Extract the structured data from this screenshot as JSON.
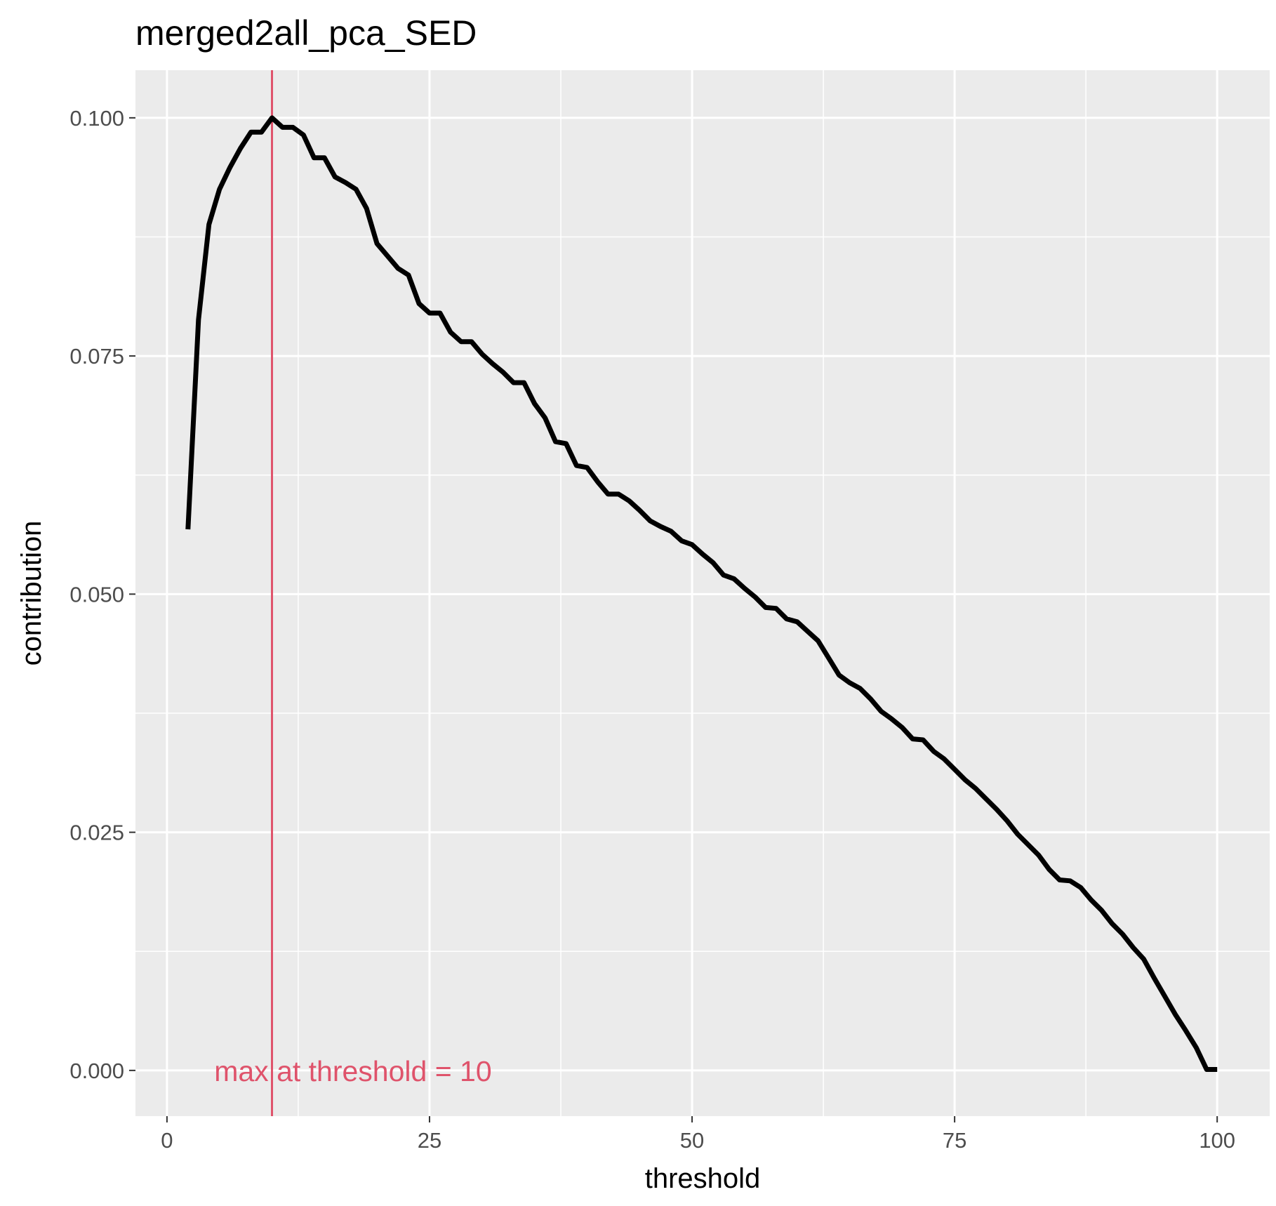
{
  "chart_data": {
    "type": "line",
    "title": "merged2all_pca_SED",
    "xlabel": "threshold",
    "ylabel": "contribution",
    "xlim": [
      -3,
      105
    ],
    "ylim": [
      -0.0048,
      0.105
    ],
    "x_ticks": [
      0,
      25,
      50,
      75,
      100
    ],
    "x_tick_labels": [
      "0",
      "25",
      "50",
      "75",
      "100"
    ],
    "y_ticks": [
      0,
      0.025,
      0.05,
      0.075,
      0.1
    ],
    "y_tick_labels": [
      "0.000",
      "0.025",
      "0.050",
      "0.075",
      "0.100"
    ],
    "grid": true,
    "legend": "none",
    "series": [
      {
        "color": "#000000",
        "x": [
          2,
          3,
          4,
          5,
          6,
          7,
          8,
          9,
          10,
          11,
          12,
          13,
          14,
          15,
          16,
          17,
          18,
          19,
          20,
          21,
          22,
          23,
          24,
          25,
          26,
          27,
          28,
          29,
          30,
          31,
          32,
          33,
          34,
          35,
          36,
          37,
          38,
          39,
          40,
          41,
          42,
          43,
          44,
          45,
          46,
          47,
          48,
          49,
          50,
          51,
          52,
          53,
          54,
          55,
          56,
          57,
          58,
          59,
          60,
          61,
          62,
          63,
          64,
          65,
          66,
          67,
          68,
          69,
          70,
          71,
          72,
          73,
          74,
          75,
          76,
          77,
          78,
          79,
          80,
          81,
          82,
          83,
          84,
          85,
          86,
          87,
          88,
          89,
          90,
          91,
          92,
          93,
          94,
          95,
          96,
          97,
          98,
          99,
          100
        ],
        "y": [
          0.0568,
          0.0788,
          0.0888,
          0.0925,
          0.0948,
          0.0968,
          0.0985,
          0.0985,
          0.1,
          0.099,
          0.099,
          0.0982,
          0.0958,
          0.0958,
          0.0938,
          0.0932,
          0.0925,
          0.0905,
          0.0868,
          0.0855,
          0.0842,
          0.0835,
          0.0805,
          0.0795,
          0.0795,
          0.0775,
          0.0765,
          0.0765,
          0.0752,
          0.0742,
          0.0733,
          0.0722,
          0.0722,
          0.07,
          0.0685,
          0.066,
          0.0658,
          0.0635,
          0.0633,
          0.0618,
          0.0605,
          0.0605,
          0.0598,
          0.0588,
          0.0577,
          0.0571,
          0.0566,
          0.0556,
          0.0552,
          0.0542,
          0.0533,
          0.052,
          0.0516,
          0.0506,
          0.0497,
          0.0486,
          0.0485,
          0.0474,
          0.0471,
          0.0461,
          0.0451,
          0.0433,
          0.0415,
          0.0407,
          0.0401,
          0.039,
          0.0377,
          0.0369,
          0.036,
          0.0348,
          0.0347,
          0.0335,
          0.0327,
          0.0316,
          0.0305,
          0.0296,
          0.0285,
          0.0274,
          0.0262,
          0.0248,
          0.0237,
          0.0226,
          0.0211,
          0.02,
          0.0199,
          0.0192,
          0.0179,
          0.0168,
          0.0154,
          0.0143,
          0.0129,
          0.0117,
          0.0097,
          0.0078,
          0.0059,
          0.0042,
          0.0024,
          0.0001,
          0.0001
        ]
      }
    ],
    "vline": {
      "x": 10,
      "color": "#df536b"
    },
    "annotation": {
      "text": "max at threshold =  10",
      "x": 4.5,
      "y": 0.0,
      "color": "#df536b"
    }
  }
}
